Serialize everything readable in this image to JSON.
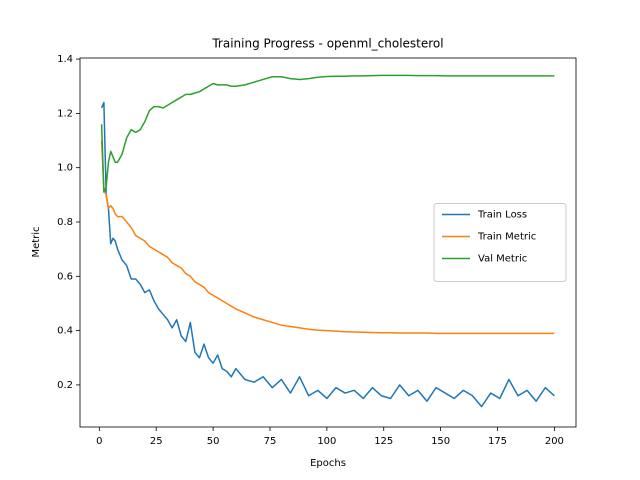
{
  "chart_data": {
    "type": "line",
    "title": "Training Progress - openml_cholesterol",
    "x_label": "Epochs",
    "y_label": "Metric",
    "x": [
      1,
      2,
      3,
      4,
      5,
      6,
      7,
      8,
      10,
      12,
      14,
      16,
      18,
      20,
      22,
      24,
      26,
      28,
      30,
      32,
      34,
      36,
      38,
      40,
      42,
      44,
      46,
      48,
      50,
      52,
      54,
      56,
      58,
      60,
      64,
      68,
      72,
      76,
      80,
      84,
      88,
      92,
      96,
      100,
      104,
      108,
      112,
      116,
      120,
      124,
      128,
      132,
      136,
      140,
      144,
      148,
      152,
      156,
      160,
      164,
      168,
      172,
      176,
      180,
      184,
      188,
      192,
      196,
      200
    ],
    "series": [
      {
        "name": "Train Loss",
        "color": "#1f77b4",
        "values": [
          1.22,
          1.24,
          0.9,
          0.85,
          0.72,
          0.74,
          0.73,
          0.7,
          0.66,
          0.64,
          0.59,
          0.59,
          0.57,
          0.54,
          0.55,
          0.51,
          0.48,
          0.46,
          0.44,
          0.41,
          0.44,
          0.38,
          0.36,
          0.43,
          0.32,
          0.3,
          0.35,
          0.3,
          0.28,
          0.31,
          0.26,
          0.25,
          0.23,
          0.26,
          0.22,
          0.21,
          0.23,
          0.19,
          0.22,
          0.17,
          0.23,
          0.16,
          0.18,
          0.15,
          0.19,
          0.17,
          0.18,
          0.15,
          0.19,
          0.16,
          0.15,
          0.2,
          0.16,
          0.18,
          0.14,
          0.19,
          0.17,
          0.15,
          0.18,
          0.16,
          0.12,
          0.17,
          0.15,
          0.22,
          0.16,
          0.18,
          0.14,
          0.19,
          0.16
        ]
      },
      {
        "name": "Train Metric",
        "color": "#ff7f0e",
        "values": [
          1.1,
          0.92,
          0.9,
          0.85,
          0.86,
          0.85,
          0.83,
          0.82,
          0.82,
          0.8,
          0.78,
          0.75,
          0.74,
          0.73,
          0.71,
          0.7,
          0.69,
          0.68,
          0.67,
          0.65,
          0.64,
          0.63,
          0.61,
          0.6,
          0.58,
          0.57,
          0.56,
          0.54,
          0.53,
          0.52,
          0.51,
          0.5,
          0.49,
          0.48,
          0.465,
          0.45,
          0.44,
          0.43,
          0.42,
          0.415,
          0.41,
          0.405,
          0.402,
          0.4,
          0.398,
          0.396,
          0.395,
          0.394,
          0.393,
          0.392,
          0.392,
          0.391,
          0.391,
          0.391,
          0.391,
          0.39,
          0.39,
          0.39,
          0.39,
          0.39,
          0.39,
          0.39,
          0.39,
          0.39,
          0.39,
          0.39,
          0.39,
          0.39,
          0.39
        ]
      },
      {
        "name": "Val Metric",
        "color": "#2ca02c",
        "values": [
          1.16,
          0.91,
          0.93,
          1.02,
          1.06,
          1.04,
          1.02,
          1.02,
          1.05,
          1.11,
          1.14,
          1.13,
          1.14,
          1.17,
          1.21,
          1.225,
          1.225,
          1.22,
          1.23,
          1.24,
          1.25,
          1.26,
          1.27,
          1.27,
          1.275,
          1.28,
          1.29,
          1.3,
          1.31,
          1.305,
          1.305,
          1.305,
          1.3,
          1.3,
          1.305,
          1.315,
          1.325,
          1.335,
          1.335,
          1.328,
          1.325,
          1.328,
          1.333,
          1.336,
          1.337,
          1.337,
          1.338,
          1.338,
          1.339,
          1.34,
          1.34,
          1.34,
          1.34,
          1.339,
          1.339,
          1.339,
          1.338,
          1.338,
          1.338,
          1.338,
          1.338,
          1.338,
          1.338,
          1.338,
          1.338,
          1.338,
          1.338,
          1.338,
          1.338
        ]
      }
    ],
    "xlim": [
      -8.5,
      209.5
    ],
    "ylim": [
      0.045,
      1.404
    ],
    "xticks": [
      0,
      25,
      50,
      75,
      100,
      125,
      150,
      175,
      200
    ],
    "yticks": [
      0.2,
      0.4,
      0.6,
      0.8,
      {
        "value": 1.0,
        "label": "1.0"
      },
      1.2,
      1.4
    ],
    "legend": "center right",
    "grid": false
  }
}
